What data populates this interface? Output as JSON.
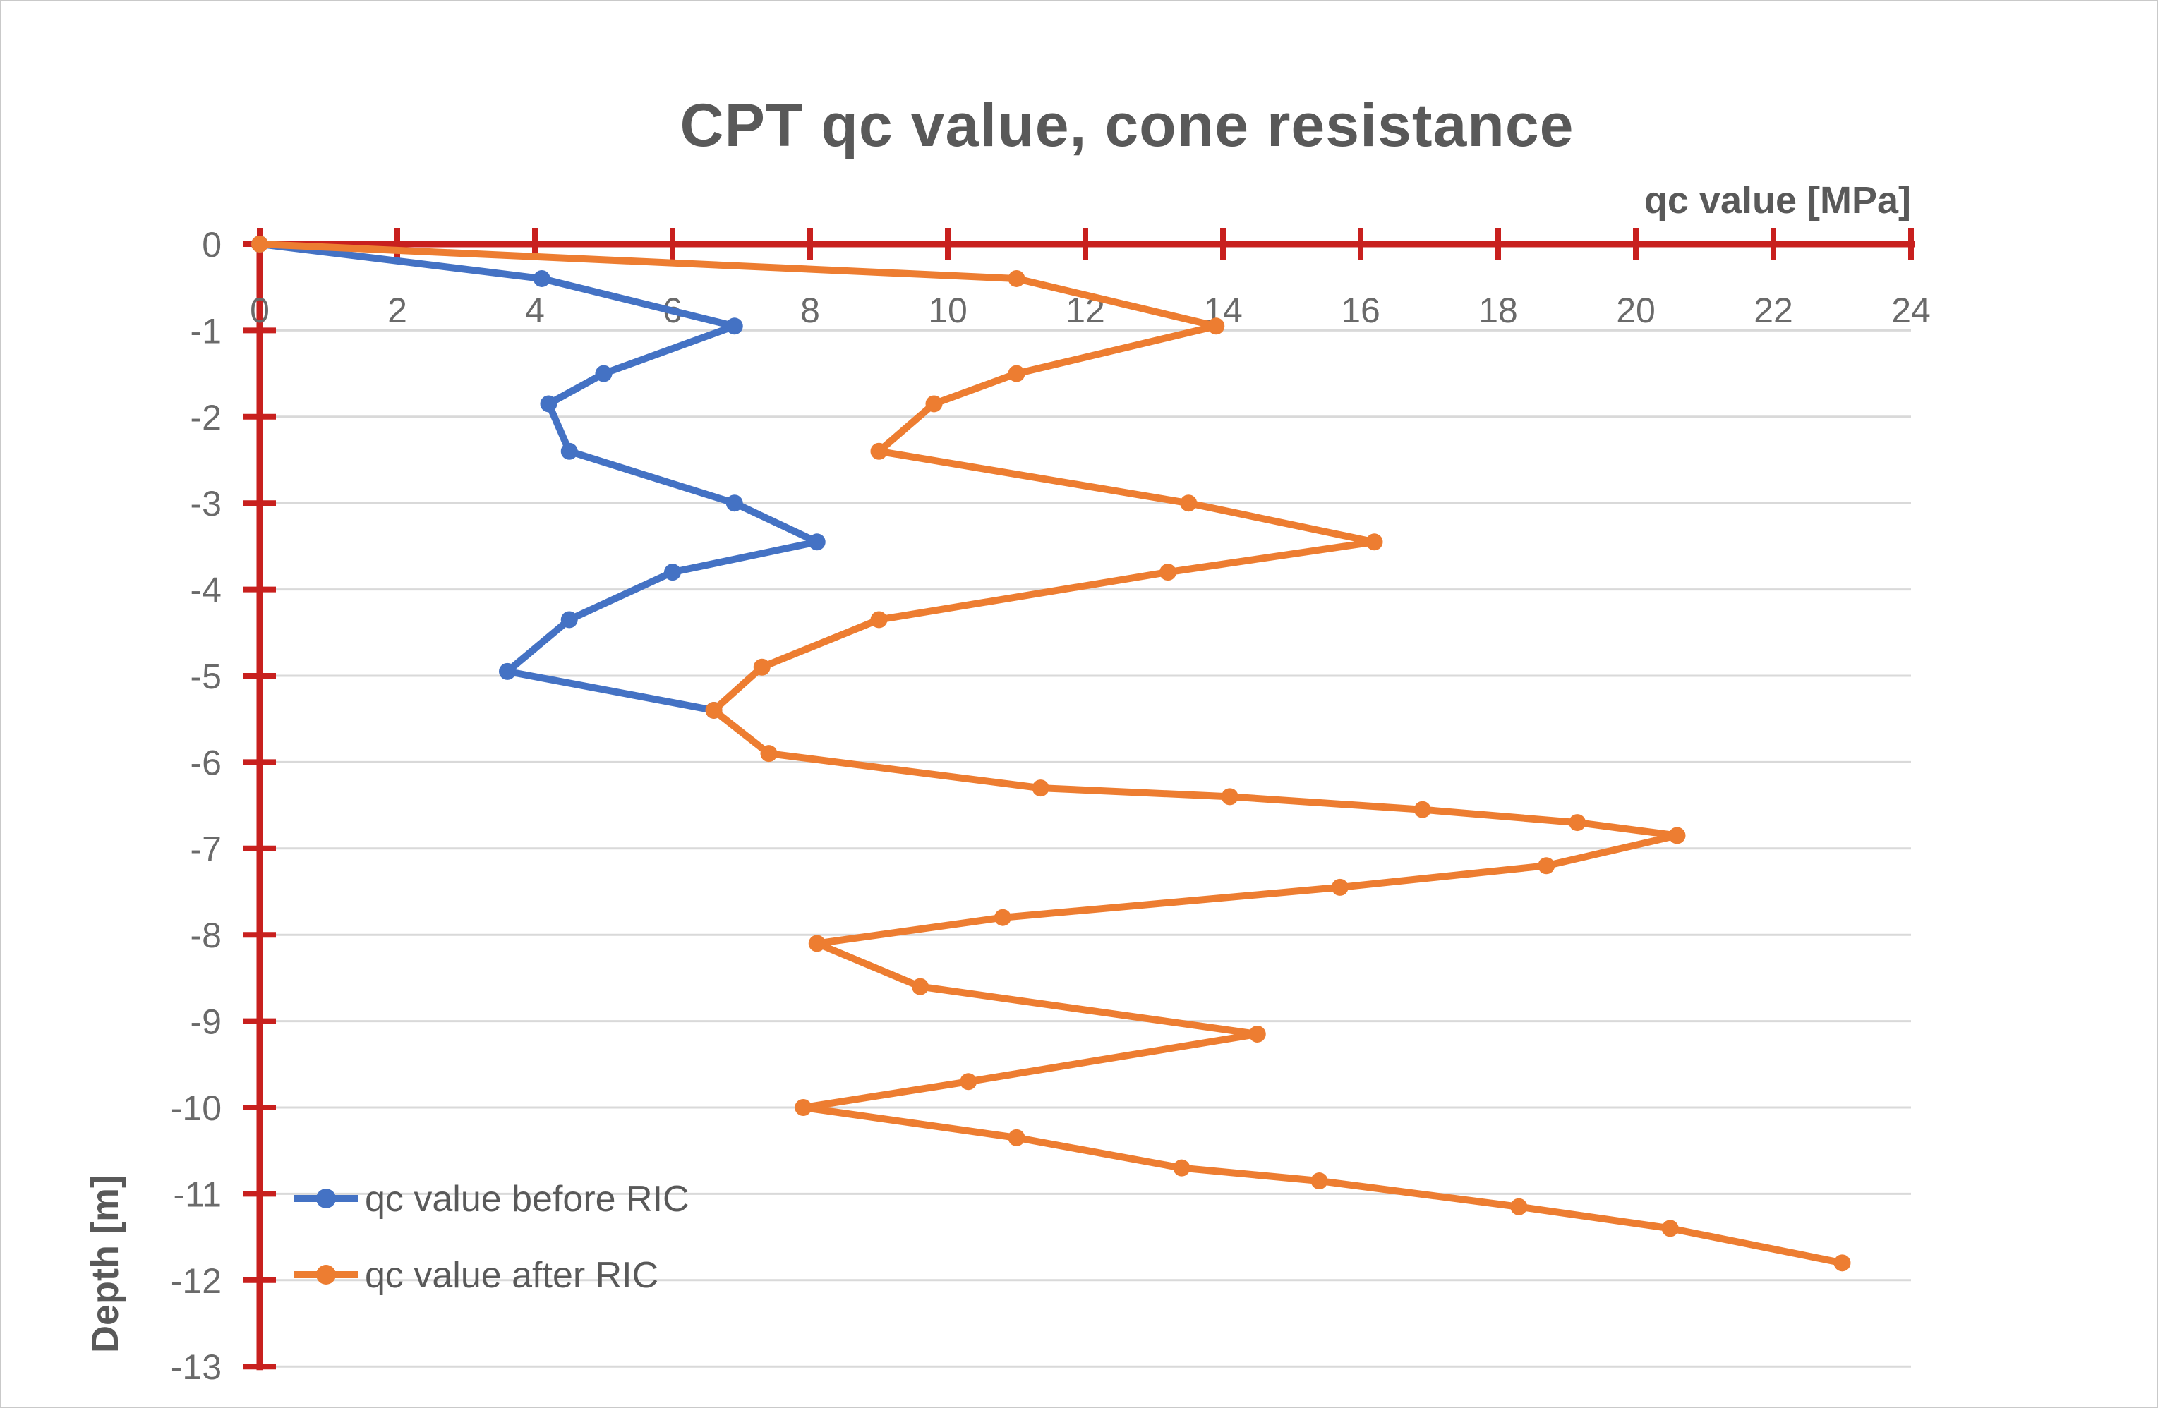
{
  "title": "CPT qc value, cone resistance",
  "chart_data": {
    "type": "line",
    "title": "CPT qc value, cone resistance",
    "xlabel": "qc value [MPa]",
    "ylabel": "Depth [m]",
    "x_axis": {
      "min": 0,
      "max": 24,
      "tick_step": 2,
      "label_position": "top-right"
    },
    "y_axis": {
      "min": -13,
      "max": 0,
      "tick_step": 1
    },
    "xlim": [
      0,
      24
    ],
    "ylim": [
      -13,
      0
    ],
    "grid": "horizontal gridlines on, color #D9D9D9",
    "legend_position": "inside-bottom-left",
    "colors": {
      "axis": "#C8201E",
      "grid": "#D9D9D9",
      "title_text": "#595959",
      "tick_text": "#6A6A6A",
      "series_before": "#4472C4",
      "series_after": "#ED7D31"
    },
    "series": [
      {
        "name": "qc value before RIC",
        "color": "#4472C4",
        "points": [
          [
            0,
            0
          ],
          [
            4.1,
            -0.4
          ],
          [
            6.9,
            -0.95
          ],
          [
            5.0,
            -1.5
          ],
          [
            4.2,
            -1.85
          ],
          [
            4.5,
            -2.4
          ],
          [
            6.9,
            -3.0
          ],
          [
            8.1,
            -3.45
          ],
          [
            6.0,
            -3.8
          ],
          [
            4.5,
            -4.35
          ],
          [
            3.6,
            -4.95
          ],
          [
            6.6,
            -5.4
          ]
        ]
      },
      {
        "name": "qc value after RIC",
        "color": "#ED7D31",
        "points": [
          [
            0,
            0
          ],
          [
            11.0,
            -0.4
          ],
          [
            13.9,
            -0.95
          ],
          [
            11.0,
            -1.5
          ],
          [
            9.8,
            -1.85
          ],
          [
            9.0,
            -2.4
          ],
          [
            13.5,
            -3.0
          ],
          [
            16.2,
            -3.45
          ],
          [
            13.2,
            -3.8
          ],
          [
            9.0,
            -4.35
          ],
          [
            7.3,
            -4.9
          ],
          [
            6.6,
            -5.4
          ],
          [
            7.4,
            -5.9
          ],
          [
            11.35,
            -6.3
          ],
          [
            14.1,
            -6.4
          ],
          [
            16.9,
            -6.55
          ],
          [
            19.15,
            -6.7
          ],
          [
            20.6,
            -6.85
          ],
          [
            18.7,
            -7.2
          ],
          [
            15.7,
            -7.45
          ],
          [
            10.8,
            -7.8
          ],
          [
            8.1,
            -8.1
          ],
          [
            9.6,
            -8.6
          ],
          [
            14.5,
            -9.15
          ],
          [
            10.3,
            -9.7
          ],
          [
            7.9,
            -10.0
          ],
          [
            11.0,
            -10.35
          ],
          [
            13.4,
            -10.7
          ],
          [
            15.4,
            -10.85
          ],
          [
            18.3,
            -11.15
          ],
          [
            20.5,
            -11.4
          ],
          [
            23.0,
            -11.8
          ]
        ]
      }
    ]
  }
}
